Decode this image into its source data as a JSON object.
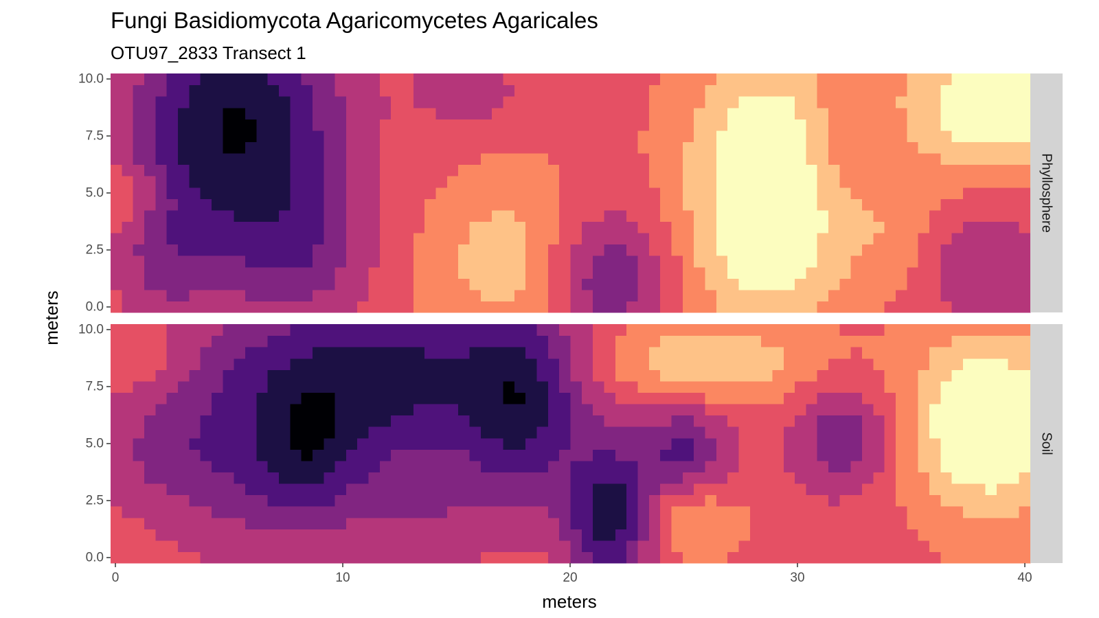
{
  "chart_data": {
    "type": "heatmap",
    "title": "Fungi Basidiomycota Agaricomycetes Agaricales",
    "subtitle": "OTU97_2833 Transect 1",
    "xlabel": "meters",
    "ylabel": "meters",
    "xlim": [
      0,
      40
    ],
    "ylim": [
      0,
      10
    ],
    "x_ticks": [
      "0",
      "10",
      "20",
      "30",
      "40"
    ],
    "y_ticks": [
      "0.0",
      "2.5",
      "5.0",
      "7.5",
      "10.0"
    ],
    "grid": false,
    "legend": "none",
    "colormap": "magma",
    "palette": [
      "#000004",
      "#1c1044",
      "#4f127b",
      "#812581",
      "#b5367a",
      "#e55064",
      "#fb8761",
      "#fec287",
      "#fcfdbf"
    ],
    "panels": [
      {
        "name": "Phyllosphere",
        "blobs": [
          {
            "x": 5.5,
            "y": 8.3,
            "sx": 3.2,
            "sy": 3.0,
            "amp": -4.5
          },
          {
            "x": 7.8,
            "y": 2.8,
            "sx": 2.4,
            "sy": 2.4,
            "amp": -2.6
          },
          {
            "x": 3.0,
            "y": 4.0,
            "sx": 2.0,
            "sy": 2.5,
            "amp": -1.3
          },
          {
            "x": 15.5,
            "y": 9.4,
            "sx": 1.6,
            "sy": 1.2,
            "amp": -1.4
          },
          {
            "x": 21.5,
            "y": 1.5,
            "sx": 2.0,
            "sy": 2.0,
            "amp": -2.8
          },
          {
            "x": 17.5,
            "y": 2.2,
            "sx": 2.6,
            "sy": 2.4,
            "amp": 2.0
          },
          {
            "x": 28.5,
            "y": 3.8,
            "sx": 2.5,
            "sy": 3.2,
            "amp": 3.6
          },
          {
            "x": 28.8,
            "y": 8.4,
            "sx": 2.5,
            "sy": 2.0,
            "amp": 1.6
          },
          {
            "x": 38.5,
            "y": 8.6,
            "sx": 3.0,
            "sy": 1.9,
            "amp": 3.3
          },
          {
            "x": 38.0,
            "y": 1.8,
            "sx": 1.8,
            "sy": 1.8,
            "amp": -1.7
          },
          {
            "x": 32.0,
            "y": 7.5,
            "sx": 1.4,
            "sy": 1.6,
            "amp": -1.1
          },
          {
            "x": 0.3,
            "y": 5.0,
            "sx": 1.6,
            "sy": 1.0,
            "amp": 1.3
          },
          {
            "x": 2.2,
            "y": 1.5,
            "sx": 1.5,
            "sy": 1.8,
            "amp": -1.0
          },
          {
            "x": 34.0,
            "y": 3.5,
            "sx": 1.5,
            "sy": 1.8,
            "amp": 0.9
          }
        ]
      },
      {
        "name": "Soil",
        "blobs": [
          {
            "x": 11.5,
            "y": 7.8,
            "sx": 6.0,
            "sy": 2.6,
            "amp": -4.2
          },
          {
            "x": 18.0,
            "y": 6.5,
            "sx": 1.7,
            "sy": 2.8,
            "amp": -2.6
          },
          {
            "x": 8.5,
            "y": 4.5,
            "sx": 1.6,
            "sy": 1.8,
            "amp": -1.9
          },
          {
            "x": 21.8,
            "y": 2.0,
            "sx": 1.4,
            "sy": 2.0,
            "amp": -4.3
          },
          {
            "x": 6.0,
            "y": 3.2,
            "sx": 3.5,
            "sy": 2.6,
            "amp": -1.5
          },
          {
            "x": 14.0,
            "y": 2.2,
            "sx": 3.0,
            "sy": 1.8,
            "amp": -1.2
          },
          {
            "x": 38.2,
            "y": 5.8,
            "sx": 2.4,
            "sy": 2.6,
            "amp": 4.0
          },
          {
            "x": 25.5,
            "y": 8.4,
            "sx": 3.8,
            "sy": 1.3,
            "amp": 2.3
          },
          {
            "x": 25.0,
            "y": 4.8,
            "sx": 1.4,
            "sy": 1.4,
            "amp": -2.6
          },
          {
            "x": 31.8,
            "y": 5.2,
            "sx": 1.6,
            "sy": 1.7,
            "amp": -2.4
          },
          {
            "x": 25.0,
            "y": 1.8,
            "sx": 1.6,
            "sy": 1.1,
            "amp": 1.6
          },
          {
            "x": 1.5,
            "y": 8.6,
            "sx": 1.4,
            "sy": 1.2,
            "amp": 0.9
          },
          {
            "x": 2.5,
            "y": 4.5,
            "sx": 2.5,
            "sy": 1.5,
            "amp": -0.9
          }
        ]
      }
    ]
  }
}
